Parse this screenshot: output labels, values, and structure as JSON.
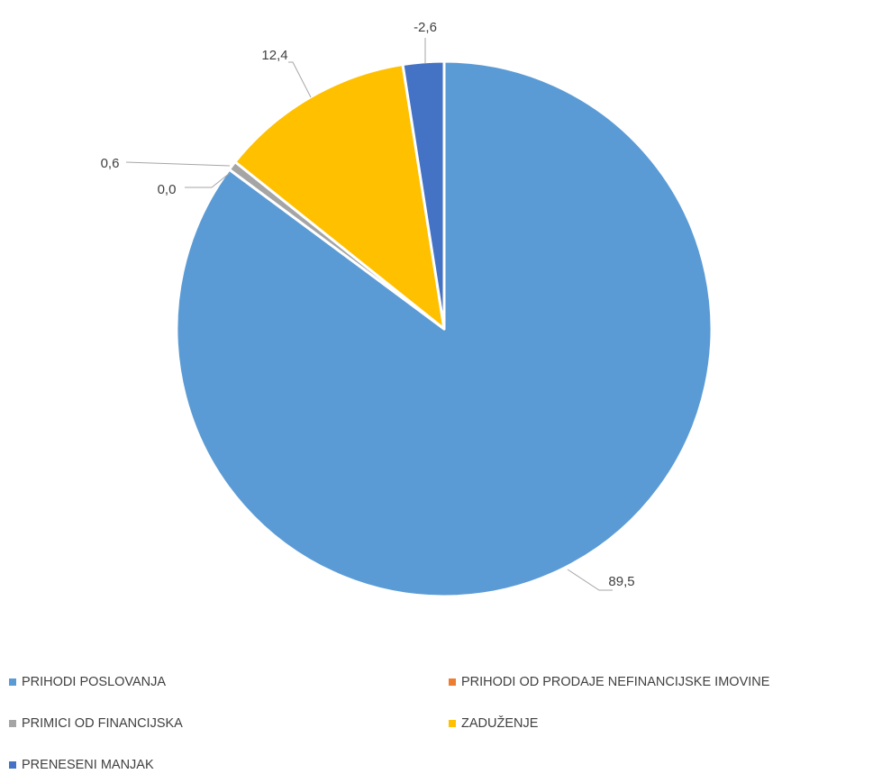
{
  "chart_data": {
    "type": "pie",
    "slices": [
      {
        "name": "PRIHODI POSLOVANJA",
        "value": 89.5,
        "label": "89,5",
        "color": "#5B9BD5"
      },
      {
        "name": "PRIHODI OD PRODAJE NEFINANCIJSKE IMOVINE",
        "value": 0.0,
        "label": "0,0",
        "color": "#ED7D31"
      },
      {
        "name": "PRIMICI OD FINANCIJSKA",
        "value": 0.6,
        "label": "0,6",
        "color": "#A5A5A5"
      },
      {
        "name": "ZADUŽENJE",
        "value": 12.4,
        "label": "12,4",
        "color": "#FFC000"
      },
      {
        "name": "PRENESENI MANJAK",
        "value": -2.6,
        "label": "-2,6",
        "color": "#4472C4"
      }
    ],
    "legend_position": "bottom"
  }
}
